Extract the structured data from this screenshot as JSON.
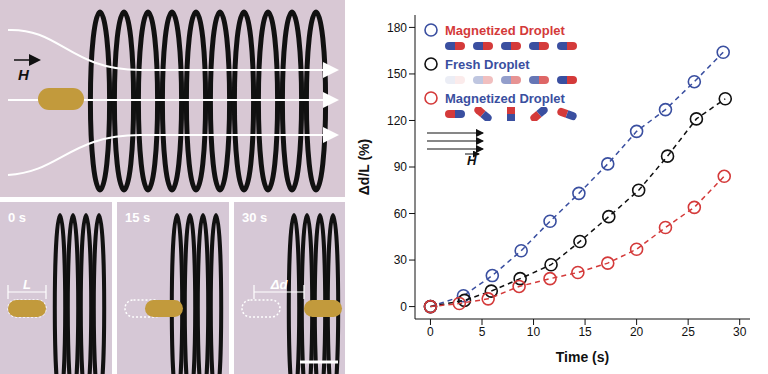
{
  "chart_data": {
    "type": "scatter",
    "x_label": "Time (s)",
    "y_label": "Δd/L (%)",
    "xlim": [
      -1.5,
      31
    ],
    "xticks": [
      0,
      5,
      10,
      15,
      20,
      25,
      30
    ],
    "ylim": [
      -8,
      188
    ],
    "yticks": [
      0,
      30,
      60,
      90,
      120,
      150,
      180
    ],
    "legend": "upper left",
    "grid": false,
    "annotations": [
      "H"
    ],
    "series": [
      {
        "name": "Magnetized Droplet",
        "color": "#3a4fa0",
        "marker": "open_circle",
        "line_style": "dashed",
        "x": [
          0,
          3.2,
          6,
          8.8,
          11.6,
          14.4,
          17.2,
          20,
          22.8,
          25.6,
          28.4
        ],
        "values": [
          0,
          7,
          20,
          36,
          55,
          73,
          92,
          113,
          127,
          145,
          164
        ]
      },
      {
        "name": "Fresh Droplet",
        "color": "#111111",
        "marker": "open_circle",
        "line_style": "dashed",
        "x": [
          0,
          3.3,
          5.9,
          8.7,
          11.7,
          14.5,
          17.3,
          20.2,
          23,
          25.8,
          28.6
        ],
        "values": [
          0,
          4,
          10,
          18,
          27,
          42,
          58,
          75,
          97,
          121,
          134
        ]
      },
      {
        "name": "Magnetized Droplet",
        "color": "#d43a3a",
        "marker": "open_circle",
        "line_style": "dashed",
        "x": [
          0,
          2.8,
          5.6,
          8.6,
          11.6,
          14.3,
          17.2,
          20,
          22.8,
          25.6,
          28.5
        ],
        "values": [
          0,
          2,
          5,
          13,
          18,
          22,
          28,
          37,
          51,
          64,
          84
        ]
      }
    ]
  },
  "photo_panel": {
    "field_label": "H",
    "frame_labels": [
      "0 s",
      "15 s",
      "30 s"
    ],
    "length_label": "L",
    "displacement_label": "Δd"
  }
}
